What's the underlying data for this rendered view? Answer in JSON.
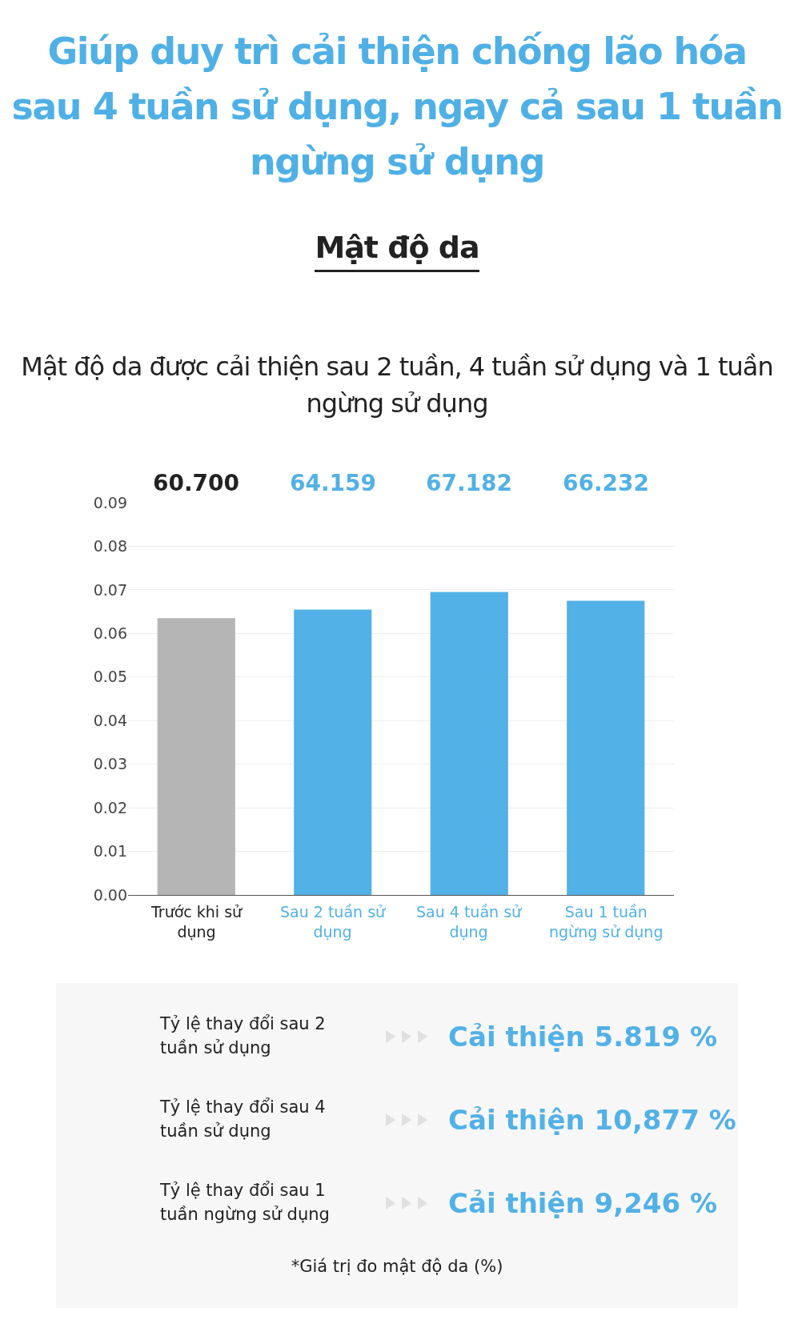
{
  "chart_data": {
    "type": "bar",
    "title": "Giúp duy trì cải thiện chống lão hóa sau 4 tuần sử dụng, ngay cả sau 1 tuần ngừng sử dụng",
    "subtitle": "Mật độ da",
    "annotations": [
      "Mật độ da được cải thiện sau 2 tuần, 4 tuần sử dụng và 1 tuần ngừng sử dụng",
      "Tỷ lệ thay đổi sau 2 tuần sử dụng",
      "Cải thiện 5.819 %",
      "Tỷ lệ thay đổi sau 4 tuần sử dụng",
      "Cải thiện 10,877 %",
      "Tỷ lệ thay đổi sau 1 tuần ngừng sử dụng",
      "Cải thiện 9,246 %",
      "*Giá trị đo mật độ da (%)",
      "60.700",
      "64.159",
      "67.182",
      "66.232"
    ],
    "categories": [
      "Trước khi sử dụng",
      "Sau 2 tuần sử dụng",
      "Sau 4 tuần sử dụng",
      "Sau 1 tuần ngừng sử dụng"
    ],
    "values": [
      0.0635,
      0.0655,
      0.0695,
      0.0675
    ],
    "colors": [
      "#b5b5b5",
      "#52b1e6",
      "#52b1e6",
      "#52b1e6"
    ],
    "ylim": [
      0,
      0.09
    ],
    "yticks": [
      {
        "value": 0,
        "label": "0.00"
      },
      {
        "value": 0.01,
        "label": "0.01"
      },
      {
        "value": 0.02,
        "label": "0.02"
      },
      {
        "value": 0.03,
        "label": "0.03"
      },
      {
        "value": 0.04,
        "label": "0.04"
      },
      {
        "value": 0.05,
        "label": "0.05"
      },
      {
        "value": 0.06,
        "label": "0.06"
      },
      {
        "value": 0.07,
        "label": "0.07"
      },
      {
        "value": 0.08,
        "label": "0.08"
      },
      {
        "value": 0.09,
        "label": "0.09"
      }
    ],
    "grid": "y"
  }
}
